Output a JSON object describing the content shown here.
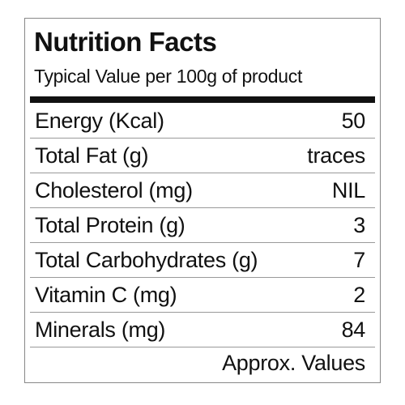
{
  "header": {
    "title": "Nutrition Facts",
    "subtitle": "Typical Value per 100g of product"
  },
  "table": {
    "rows": [
      [
        "Energy (Kcal)",
        50
      ],
      [
        "Total Fat (g)",
        "traces"
      ],
      [
        "Cholesterol (mg)",
        "NIL"
      ],
      [
        "Total Protein (g)",
        3
      ],
      [
        "Total Carbohydrates (g)",
        7
      ],
      [
        "Vitamin C (mg)",
        2
      ],
      [
        "Minerals (mg)",
        84
      ]
    ]
  },
  "footer": "Approx. Values"
}
